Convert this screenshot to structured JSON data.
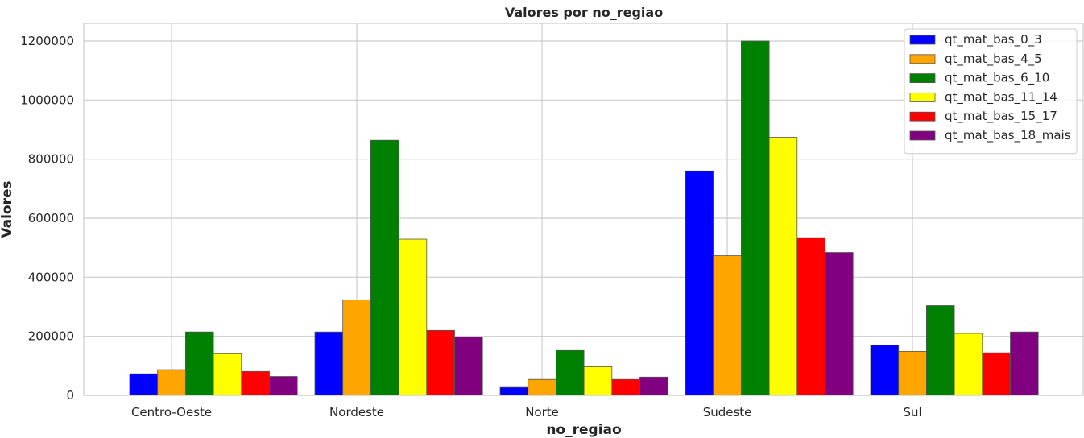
{
  "chart_data": {
    "type": "bar",
    "title": "Valores por no_regiao",
    "xlabel": "no_regiao",
    "ylabel": "Valores",
    "categories": [
      "Centro-Oeste",
      "Nordeste",
      "Norte",
      "Sudeste",
      "Sul"
    ],
    "ylim": [
      0,
      1260000
    ],
    "yticks": [
      0,
      200000,
      400000,
      600000,
      800000,
      1000000,
      1200000
    ],
    "ytick_labels": [
      "0",
      "200000",
      "400000",
      "600000",
      "800000",
      "1000000",
      "1200000"
    ],
    "grid": true,
    "legend_position": "top-right",
    "series": [
      {
        "name": "qt_mat_bas_0_3",
        "color": "#0000ff",
        "values": [
          73000,
          215000,
          27000,
          760000,
          170000
        ]
      },
      {
        "name": "qt_mat_bas_4_5",
        "color": "#ffa500",
        "values": [
          87000,
          323000,
          54000,
          473000,
          149000
        ]
      },
      {
        "name": "qt_mat_bas_6_10",
        "color": "#008000",
        "values": [
          215000,
          864000,
          152000,
          1200000,
          304000
        ]
      },
      {
        "name": "qt_mat_bas_11_14",
        "color": "#ffff00",
        "values": [
          141000,
          529000,
          97000,
          874000,
          210000
        ]
      },
      {
        "name": "qt_mat_bas_15_17",
        "color": "#ff0000",
        "values": [
          81000,
          220000,
          54000,
          534000,
          144000
        ]
      },
      {
        "name": "qt_mat_bas_18_mais",
        "color": "#800080",
        "values": [
          64000,
          198000,
          62000,
          484000,
          215000
        ]
      }
    ]
  }
}
